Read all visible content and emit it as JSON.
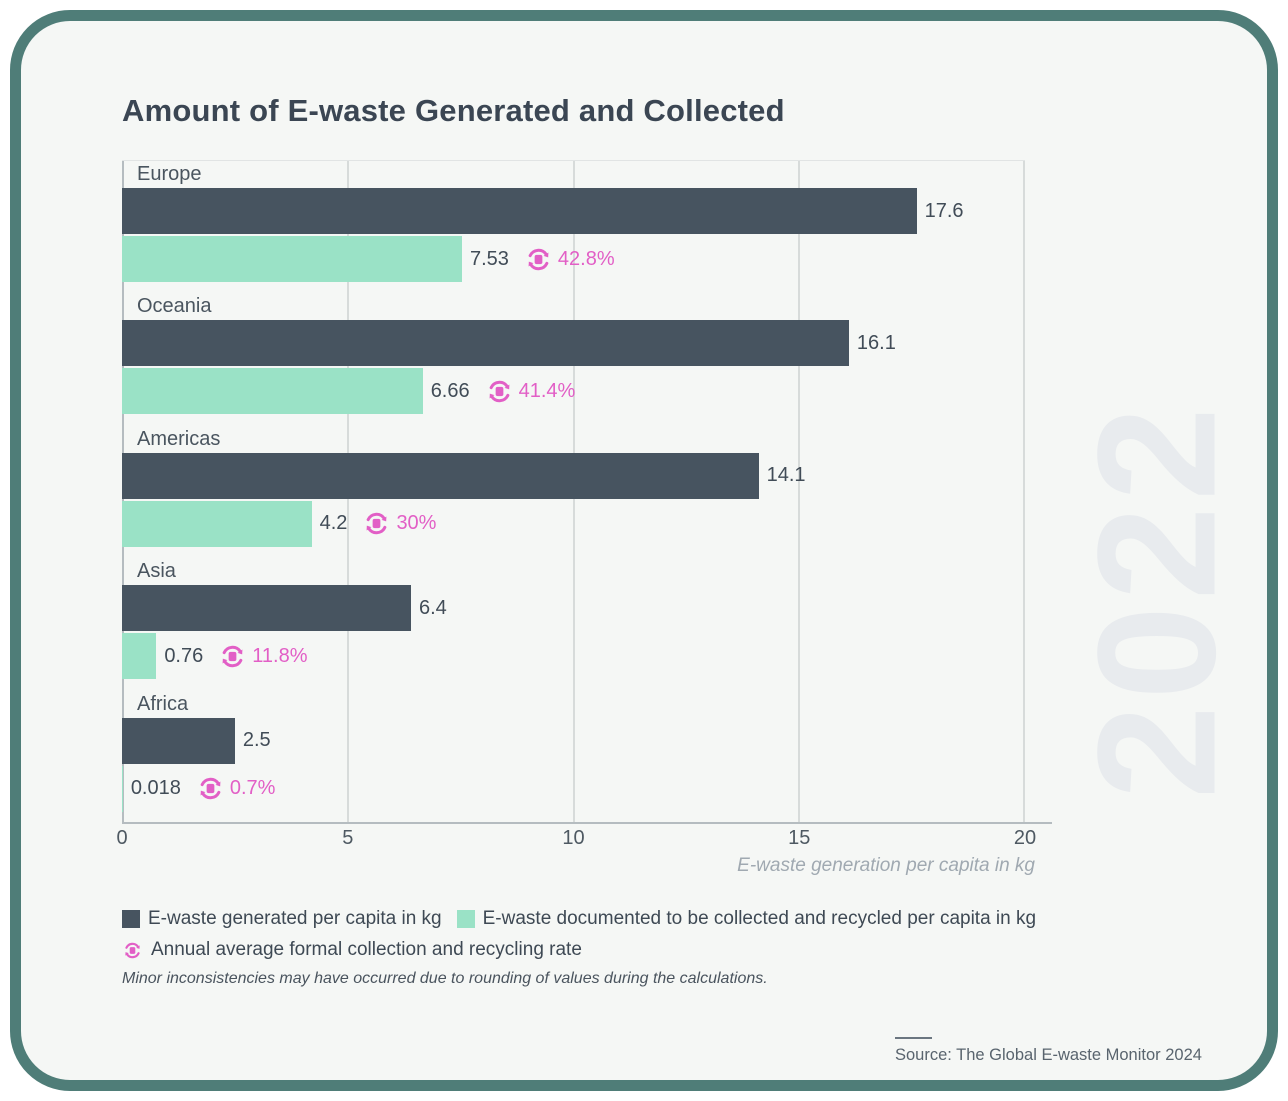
{
  "card": {
    "title": "Amount of E-waste Generated and Collected",
    "watermark": "2022",
    "note": "Minor inconsistencies may have occurred due to rounding of values during the calculations.",
    "source_label": "Source: The Global E-waste Monitor 2024"
  },
  "colors": {
    "generated_bar": "#475460",
    "collected_bar": "#9ae2c6",
    "rate_pink": "#e25fc6",
    "border_teal": "#4f7d78",
    "card_bg": "#f5f7f5"
  },
  "legend": {
    "generated": "E-waste generated per capita in kg",
    "collected": "E-waste documented to be collected and recycled per capita in kg",
    "rate": "Annual average formal collection and recycling rate"
  },
  "axis": {
    "xlabel": "E-waste generation per capita in kg",
    "xmax": 20
  },
  "chart_data": {
    "type": "bar",
    "orientation": "horizontal",
    "title": "Amount of E-waste Generated and Collected",
    "xlabel": "E-waste generation per capita in kg",
    "xlim": [
      0,
      20
    ],
    "xticks": [
      "0",
      "5",
      "10",
      "15",
      "20"
    ],
    "grid": "vertical",
    "legend_position": "bottom",
    "categories": [
      "Europe",
      "Oceania",
      "Americas",
      "Asia",
      "Africa"
    ],
    "series": [
      {
        "name": "E-waste generated per capita in kg",
        "color": "#475460",
        "values": [
          17.6,
          16.1,
          14.1,
          6.4,
          2.5
        ],
        "labels": [
          "17.6",
          "16.1",
          "14.1",
          "6.4",
          "2.5"
        ]
      },
      {
        "name": "E-waste documented to be collected and recycled per capita in kg",
        "color": "#9ae2c6",
        "values": [
          7.53,
          6.66,
          4.2,
          0.76,
          0.018
        ],
        "labels": [
          "7.53",
          "6.66",
          "4.2",
          "0.76",
          "0.018"
        ]
      },
      {
        "name": "Annual average formal collection and recycling rate",
        "color": "#e25fc6",
        "values": [
          42.8,
          41.4,
          30,
          11.8,
          0.7
        ],
        "labels": [
          "42.8%",
          "41.4%",
          "30%",
          "11.8%",
          "0.7%"
        ]
      }
    ]
  }
}
